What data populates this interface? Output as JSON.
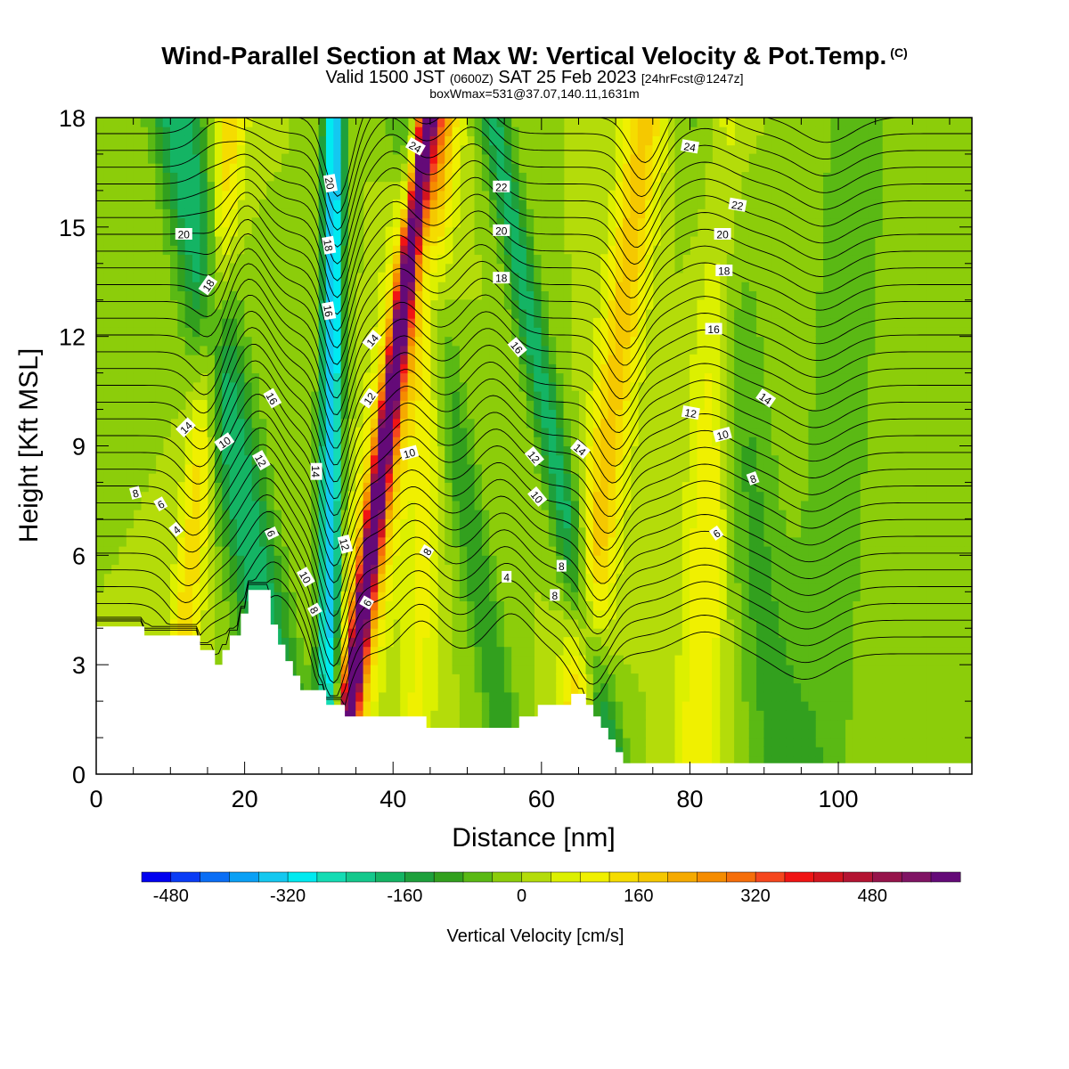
{
  "header": {
    "title": "Wind-Parallel Section at Max W: Vertical Velocity & Pot.Temp.",
    "copyright": "(C)",
    "valid_prefix": "Valid 1500 JST",
    "valid_zulu": "(0600Z)",
    "valid_date": "SAT 25 Feb 2023",
    "valid_fcst": "[24hrFcst@1247z]",
    "boxinfo": "boxWmax=531@37.07,140.11,1631m"
  },
  "chart_data": {
    "type": "heatmap",
    "title": "Wind-Parallel Section at Max W: Vertical Velocity & Pot.Temp.",
    "xlabel": "Distance [nm]",
    "ylabel": "Height [Kft MSL]",
    "xlim": [
      0,
      118
    ],
    "ylim": [
      0,
      18
    ],
    "x_ticks": [
      0,
      20,
      40,
      60,
      80,
      100
    ],
    "y_ticks": [
      0,
      3,
      6,
      9,
      12,
      15,
      18
    ],
    "grid": false,
    "colorbar": {
      "title": "Vertical Velocity [cm/s]",
      "range": [
        -520,
        560
      ],
      "step": 40,
      "tick_values": [
        -480,
        -320,
        -160,
        0,
        160,
        320,
        480
      ],
      "colors": [
        "#0000f0",
        "#0a3cf5",
        "#0a6ef5",
        "#0aa0f5",
        "#14c8f0",
        "#00eaf0",
        "#14dcb4",
        "#14c88c",
        "#14b464",
        "#1ea03c",
        "#32a01e",
        "#5ab914",
        "#8ccd0a",
        "#b4dc0a",
        "#dcf000",
        "#f0f000",
        "#f5dc00",
        "#f5c800",
        "#f5aa00",
        "#f58c00",
        "#f56e0a",
        "#f5461e",
        "#f01414",
        "#d2141e",
        "#b41432",
        "#96144b",
        "#801464",
        "#640a78"
      ]
    },
    "wmax_cm_s": 531,
    "theta_contour_labels": [
      {
        "x": 5.3,
        "y": 7.7,
        "t": "8",
        "a": -15
      },
      {
        "x": 8.7,
        "y": 7.4,
        "t": "6",
        "a": -30
      },
      {
        "x": 10.8,
        "y": 6.7,
        "t": "4",
        "a": -40
      },
      {
        "x": 12.1,
        "y": 9.5,
        "t": "14",
        "a": -45
      },
      {
        "x": 17.3,
        "y": 9.1,
        "t": "10",
        "a": -35
      },
      {
        "x": 15.1,
        "y": 13.4,
        "t": "18",
        "a": -55
      },
      {
        "x": 11.8,
        "y": 14.8,
        "t": "20",
        "a": 0
      },
      {
        "x": 23.7,
        "y": 10.3,
        "t": "16",
        "a": 60
      },
      {
        "x": 22.2,
        "y": 8.6,
        "t": "12",
        "a": 60
      },
      {
        "x": 23.6,
        "y": 6.6,
        "t": "6",
        "a": 65
      },
      {
        "x": 28.2,
        "y": 5.4,
        "t": "10",
        "a": 60
      },
      {
        "x": 29.4,
        "y": 4.5,
        "t": "8",
        "a": 60
      },
      {
        "x": 29.6,
        "y": 8.3,
        "t": "14",
        "a": 90
      },
      {
        "x": 31.5,
        "y": 16.2,
        "t": "20",
        "a": 80
      },
      {
        "x": 31.3,
        "y": 14.5,
        "t": "18",
        "a": 80
      },
      {
        "x": 31.3,
        "y": 12.7,
        "t": "16",
        "a": 80
      },
      {
        "x": 33.5,
        "y": 6.3,
        "t": "12",
        "a": 75
      },
      {
        "x": 36.5,
        "y": 4.7,
        "t": "6",
        "a": -60
      },
      {
        "x": 36.8,
        "y": 10.3,
        "t": "12",
        "a": -55
      },
      {
        "x": 37.2,
        "y": 11.9,
        "t": "14",
        "a": -50
      },
      {
        "x": 43.0,
        "y": 17.2,
        "t": "24",
        "a": 30
      },
      {
        "x": 42.2,
        "y": 8.8,
        "t": "10",
        "a": -15
      },
      {
        "x": 44.6,
        "y": 6.1,
        "t": "8",
        "a": -60
      },
      {
        "x": 54.6,
        "y": 16.1,
        "t": "22",
        "a": 0
      },
      {
        "x": 54.6,
        "y": 14.9,
        "t": "20",
        "a": 0
      },
      {
        "x": 54.6,
        "y": 13.6,
        "t": "18",
        "a": 0
      },
      {
        "x": 56.7,
        "y": 11.7,
        "t": "16",
        "a": 50
      },
      {
        "x": 55.3,
        "y": 5.4,
        "t": "4",
        "a": 0
      },
      {
        "x": 59.0,
        "y": 8.7,
        "t": "12",
        "a": 50
      },
      {
        "x": 59.4,
        "y": 7.6,
        "t": "10",
        "a": 50
      },
      {
        "x": 62.7,
        "y": 5.7,
        "t": "8",
        "a": 0
      },
      {
        "x": 61.8,
        "y": 4.9,
        "t": "8",
        "a": 0
      },
      {
        "x": 65.2,
        "y": 8.9,
        "t": "14",
        "a": 40
      },
      {
        "x": 80.0,
        "y": 17.2,
        "t": "24",
        "a": 10
      },
      {
        "x": 86.4,
        "y": 15.6,
        "t": "22",
        "a": 10
      },
      {
        "x": 84.4,
        "y": 14.8,
        "t": "20",
        "a": 0
      },
      {
        "x": 84.6,
        "y": 13.8,
        "t": "18",
        "a": 0
      },
      {
        "x": 83.2,
        "y": 12.2,
        "t": "16",
        "a": 0
      },
      {
        "x": 80.1,
        "y": 9.9,
        "t": "12",
        "a": 10
      },
      {
        "x": 84.4,
        "y": 9.3,
        "t": "10",
        "a": -15
      },
      {
        "x": 90.2,
        "y": 10.3,
        "t": "14",
        "a": 35
      },
      {
        "x": 88.5,
        "y": 8.1,
        "t": "8",
        "a": -20
      },
      {
        "x": 83.6,
        "y": 6.6,
        "t": "6",
        "a": -35
      }
    ]
  }
}
